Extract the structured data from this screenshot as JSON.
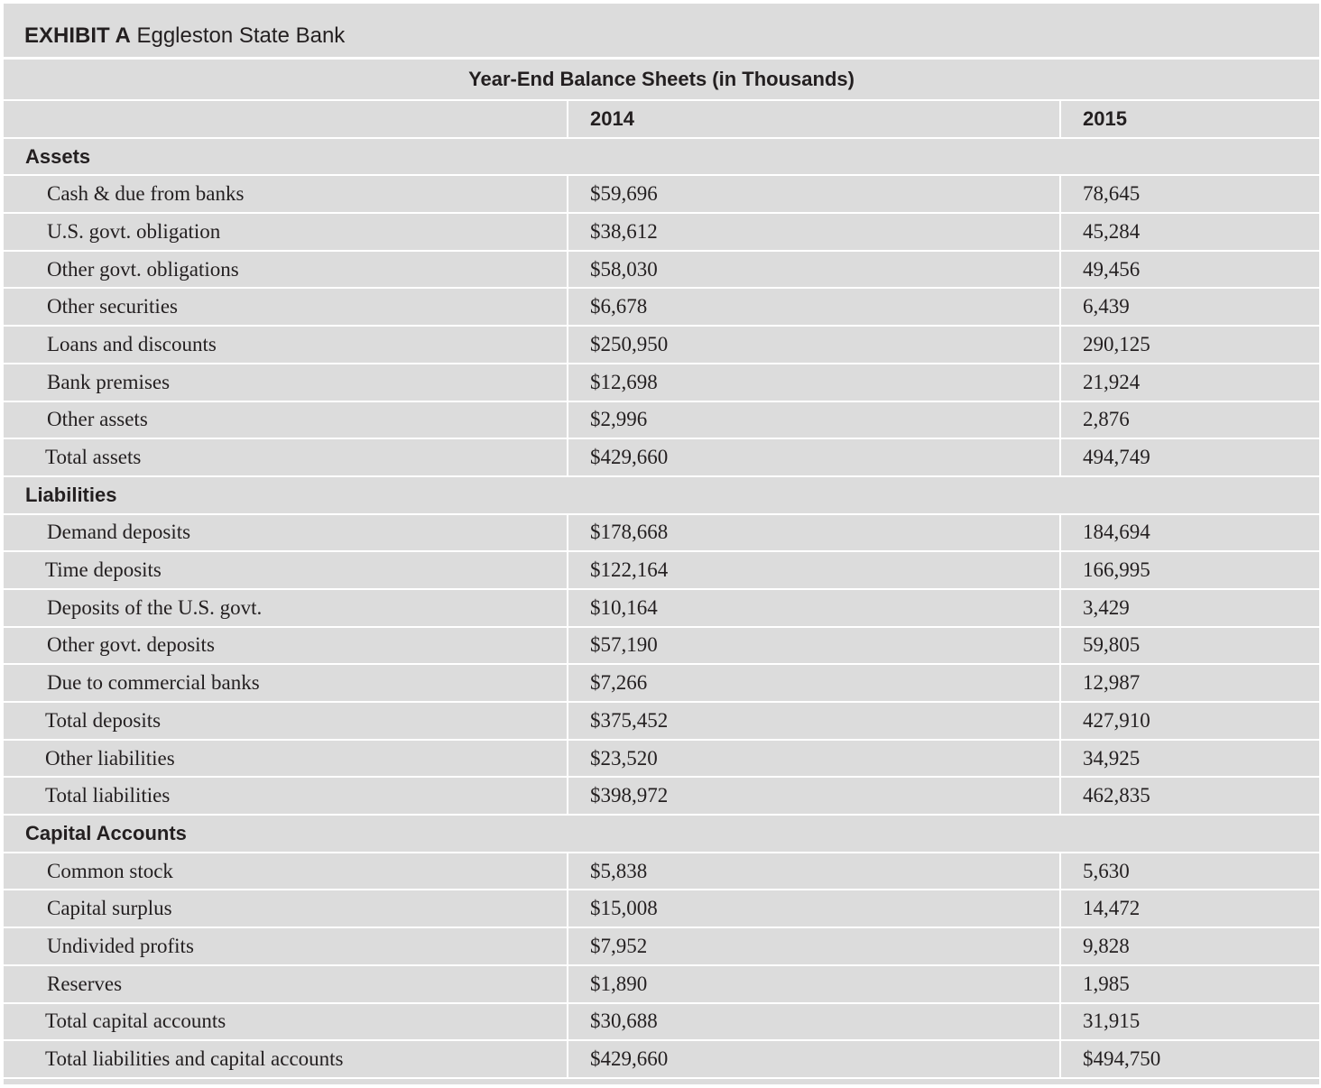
{
  "exhibit": {
    "label": "EXHIBIT A",
    "title": "Eggleston State Bank"
  },
  "table": {
    "caption": "Year-End Balance Sheets (in Thousands)",
    "years": [
      "2014",
      "2015"
    ],
    "sections": [
      {
        "heading": "Assets",
        "rows": [
          {
            "label": "Cash & due from banks",
            "v2014": "$59,696",
            "v2015": "78,645"
          },
          {
            "label": "U.S. govt. obligation",
            "v2014": "$38,612",
            "v2015": "45,284"
          },
          {
            "label": "Other govt. obligations",
            "v2014": "$58,030",
            "v2015": "49,456"
          },
          {
            "label": "Other securities",
            "v2014": "$6,678",
            "v2015": "6,439"
          },
          {
            "label": "Loans and discounts",
            "v2014": "$250,950",
            "v2015": "290,125"
          },
          {
            "label": "Bank premises",
            "v2014": "$12,698",
            "v2015": "21,924"
          },
          {
            "label": "Other assets",
            "v2014": "$2,996",
            "v2015": "2,876"
          },
          {
            "label": "Total assets",
            "v2014": "$429,660",
            "v2015": "494,749",
            "total": true
          }
        ]
      },
      {
        "heading": "Liabilities",
        "rows": [
          {
            "label": "Demand deposits",
            "v2014": "$178,668",
            "v2015": "184,694"
          },
          {
            "label": "Time deposits",
            "v2014": "$122,164",
            "v2015": "166,995",
            "total": true
          },
          {
            "label": "Deposits of the U.S. govt.",
            "v2014": "$10,164",
            "v2015": "3,429"
          },
          {
            "label": "Other govt. deposits",
            "v2014": "$57,190",
            "v2015": "59,805"
          },
          {
            "label": "Due to commercial banks",
            "v2014": "$7,266",
            "v2015": "12,987"
          },
          {
            "label": "Total deposits",
            "v2014": "$375,452",
            "v2015": "427,910",
            "total": true
          },
          {
            "label": "Other liabilities",
            "v2014": "$23,520",
            "v2015": "34,925",
            "total": true
          },
          {
            "label": "Total liabilities",
            "v2014": "$398,972",
            "v2015": "462,835",
            "total": true
          }
        ]
      },
      {
        "heading": "Capital Accounts",
        "rows": [
          {
            "label": "Common stock",
            "v2014": "$5,838",
            "v2015": "5,630"
          },
          {
            "label": "Capital surplus",
            "v2014": "$15,008",
            "v2015": "14,472"
          },
          {
            "label": "Undivided profits",
            "v2014": "$7,952",
            "v2015": "9,828"
          },
          {
            "label": "Reserves",
            "v2014": "$1,890",
            "v2015": "1,985"
          },
          {
            "label": "Total capital accounts",
            "v2014": "$30,688",
            "v2015": "31,915",
            "total": true
          },
          {
            "label": "Total liabilities and capital accounts",
            "v2014": "$429,660",
            "v2015": "$494,750",
            "total": true
          }
        ]
      }
    ]
  }
}
